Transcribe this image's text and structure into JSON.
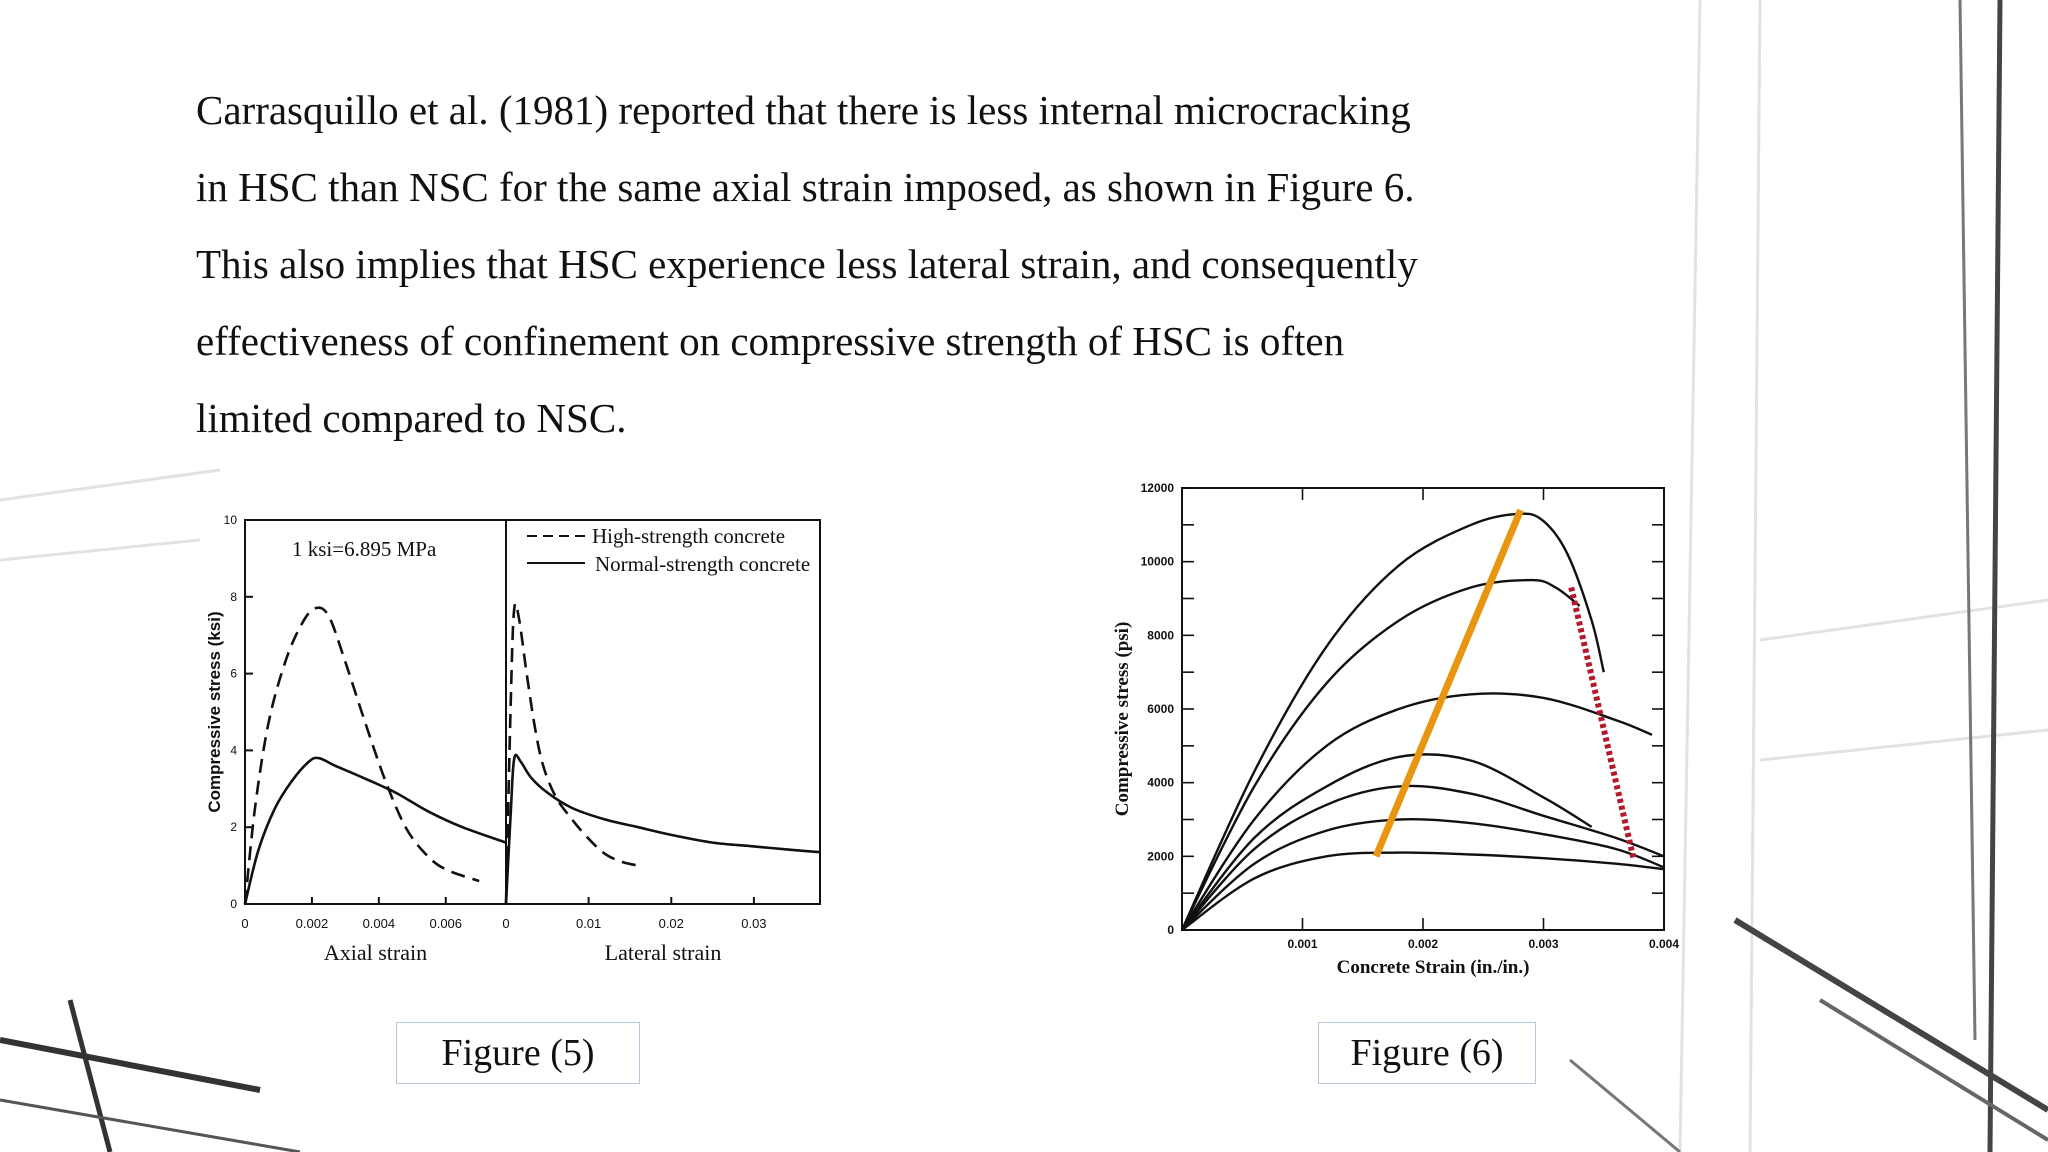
{
  "paragraph": {
    "lines": [
      "Carrasquillo et al. (1981) reported that there is less internal microcracking",
      "in HSC than NSC for the same axial strain imposed, as shown in Figure 6.",
      "This also implies that HSC experience less lateral strain, and consequently",
      "effectiveness of confinement on compressive strength of HSC is often",
      "limited compared to NSC."
    ]
  },
  "captions": {
    "fig5": "Figure (5)",
    "fig6": "Figure (6)"
  },
  "chart_data": [
    {
      "type": "line",
      "id": "figure-5",
      "ylabel": "Compressive stress (ksi)",
      "unit_note": "1 ksi=6.895 MPa",
      "ylim": [
        0,
        10
      ],
      "yticks": [
        "0",
        "2",
        "4",
        "6",
        "8",
        "10"
      ],
      "panels": [
        {
          "xlabel": "Axial strain",
          "xlim": [
            0,
            0.0078
          ],
          "xticks": [
            "0",
            "0.002",
            "0.004",
            "0.006"
          ],
          "series": [
            {
              "name": "High-strength concrete",
              "style": "dashed",
              "x": [
                0,
                0.0003,
                0.0007,
                0.0012,
                0.0017,
                0.0021,
                0.0025,
                0.003,
                0.0036,
                0.0042,
                0.0048,
                0.0054,
                0.006,
                0.007
              ],
              "y": [
                0,
                2.5,
                4.7,
                6.3,
                7.3,
                7.7,
                7.5,
                6.3,
                4.7,
                3.2,
                2.0,
                1.3,
                0.9,
                0.6
              ]
            },
            {
              "name": "Normal-strength concrete",
              "style": "solid",
              "x": [
                0,
                0.0004,
                0.0009,
                0.0014,
                0.0019,
                0.0022,
                0.0027,
                0.0035,
                0.0045,
                0.0055,
                0.0065,
                0.0078
              ],
              "y": [
                0,
                1.4,
                2.5,
                3.2,
                3.7,
                3.8,
                3.6,
                3.3,
                2.9,
                2.4,
                2.0,
                1.6
              ]
            }
          ]
        },
        {
          "xlabel": "Lateral strain",
          "xlim": [
            0,
            0.038
          ],
          "xticks": [
            "0",
            "0.01",
            "0.02",
            "0.03"
          ],
          "series": [
            {
              "name": "High-strength concrete",
              "style": "dashed",
              "x": [
                0,
                0.0006,
                0.001,
                0.0016,
                0.0025,
                0.0035,
                0.0045,
                0.006,
                0.008,
                0.01,
                0.012,
                0.014,
                0.016
              ],
              "y": [
                0,
                5.5,
                7.7,
                7.4,
                6.0,
                4.6,
                3.6,
                2.8,
                2.2,
                1.7,
                1.3,
                1.1,
                1.0
              ]
            },
            {
              "name": "Normal-strength concrete",
              "style": "solid",
              "x": [
                0,
                0.0006,
                0.001,
                0.0018,
                0.003,
                0.005,
                0.008,
                0.012,
                0.016,
                0.02,
                0.025,
                0.03,
                0.035,
                0.038
              ],
              "y": [
                0,
                2.5,
                3.8,
                3.7,
                3.3,
                2.9,
                2.5,
                2.2,
                2.0,
                1.8,
                1.6,
                1.5,
                1.4,
                1.35
              ]
            }
          ]
        }
      ]
    },
    {
      "type": "line",
      "id": "figure-6",
      "xlabel": "Concrete Strain (in./in.)",
      "ylabel": "Compressive stress (psi)",
      "xlim": [
        0,
        0.004
      ],
      "ylim": [
        0,
        12000
      ],
      "xticks": [
        "0.001",
        "0.002",
        "0.003",
        "0.004"
      ],
      "yticks": [
        "0",
        "2000",
        "4000",
        "6000",
        "8000",
        "10000",
        "12000"
      ],
      "series": [
        {
          "x": [
            0,
            0.0006,
            0.0012,
            0.0018,
            0.0024,
            0.0028,
            0.003,
            0.0032,
            0.0034,
            0.0035
          ],
          "y": [
            0,
            4300,
            7700,
            9900,
            11000,
            11300,
            11100,
            10200,
            8400,
            7000
          ]
        },
        {
          "x": [
            0,
            0.0006,
            0.0012,
            0.0018,
            0.0024,
            0.0029,
            0.0031,
            0.0033
          ],
          "y": [
            0,
            3900,
            6700,
            8400,
            9300,
            9500,
            9300,
            8800
          ]
        },
        {
          "x": [
            0,
            0.0006,
            0.0012,
            0.0018,
            0.0024,
            0.003,
            0.0036,
            0.0039
          ],
          "y": [
            0,
            3000,
            5000,
            6000,
            6400,
            6300,
            5700,
            5300
          ]
        },
        {
          "x": [
            0,
            0.0006,
            0.0012,
            0.0018,
            0.0024,
            0.003,
            0.0034
          ],
          "y": [
            0,
            2500,
            3900,
            4700,
            4600,
            3600,
            2800
          ]
        },
        {
          "x": [
            0,
            0.0006,
            0.0012,
            0.0018,
            0.0024,
            0.003,
            0.0036,
            0.004
          ],
          "y": [
            0,
            2200,
            3400,
            3900,
            3700,
            3100,
            2500,
            2000
          ]
        },
        {
          "x": [
            0,
            0.0006,
            0.0012,
            0.0018,
            0.0024,
            0.003,
            0.0036,
            0.004
          ],
          "y": [
            0,
            1800,
            2700,
            3000,
            2900,
            2600,
            2200,
            1700
          ]
        },
        {
          "x": [
            0,
            0.0006,
            0.0012,
            0.0018,
            0.0024,
            0.003,
            0.0036,
            0.004
          ],
          "y": [
            0,
            1400,
            2000,
            2100,
            2050,
            1950,
            1800,
            1650
          ]
        }
      ],
      "annotations": [
        {
          "style": "solid",
          "color": "#e8960f",
          "x": [
            0.00161,
            0.00281
          ],
          "y": [
            2000,
            11400
          ]
        },
        {
          "style": "dotted",
          "color": "#b3182b",
          "x": [
            0.00323,
            0.00375
          ],
          "y": [
            9300,
            1900
          ]
        }
      ]
    }
  ]
}
